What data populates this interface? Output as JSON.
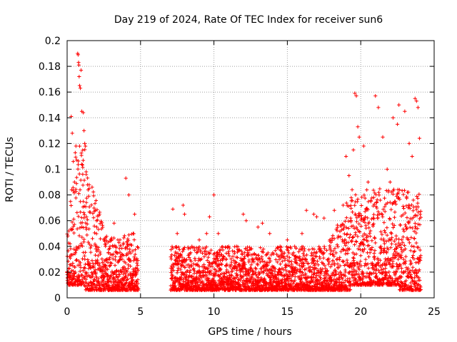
{
  "chart_data": {
    "type": "scatter",
    "title": "Day 219 of 2024, Rate Of TEC Index for receiver sun6",
    "xlabel": "GPS time / hours",
    "ylabel": "ROTI / TECUs",
    "xlim": [
      0,
      25
    ],
    "ylim": [
      0,
      0.2
    ],
    "xticks": [
      0,
      5,
      10,
      15,
      20,
      25
    ],
    "xtick_labels": [
      "0",
      "5",
      "10",
      "15",
      "20",
      "25"
    ],
    "yticks": [
      0,
      0.02,
      0.04,
      0.06,
      0.08,
      0.1,
      0.12,
      0.14,
      0.16,
      0.18,
      0.2
    ],
    "ytick_labels": [
      "0",
      "0.02",
      "0.04",
      "0.06",
      "0.08",
      "0.1",
      "0.12",
      "0.14",
      "0.16",
      "0.18",
      "0.2"
    ],
    "grid": true,
    "marker": "+",
    "color": "#ff0000",
    "series": [
      {
        "name": "ROTI",
        "points": [
          [
            0.12,
            0.052
          ],
          [
            0.28,
            0.141
          ],
          [
            0.35,
            0.128
          ],
          [
            0.42,
            0.106
          ],
          [
            0.5,
            0.09
          ],
          [
            0.6,
            0.118
          ],
          [
            0.72,
            0.19
          ],
          [
            0.75,
            0.189
          ],
          [
            0.78,
            0.183
          ],
          [
            0.8,
            0.181
          ],
          [
            0.82,
            0.172
          ],
          [
            0.85,
            0.165
          ],
          [
            0.9,
            0.163
          ],
          [
            0.95,
            0.177
          ],
          [
            1.0,
            0.145
          ],
          [
            1.1,
            0.144
          ],
          [
            1.15,
            0.13
          ],
          [
            1.2,
            0.12
          ],
          [
            1.3,
            0.098
          ],
          [
            1.5,
            0.085
          ],
          [
            1.7,
            0.086
          ],
          [
            2.0,
            0.06
          ],
          [
            2.2,
            0.065
          ],
          [
            2.5,
            0.045
          ],
          [
            3.2,
            0.058
          ],
          [
            3.6,
            0.045
          ],
          [
            4.0,
            0.093
          ],
          [
            4.2,
            0.08
          ],
          [
            4.5,
            0.05
          ],
          [
            4.6,
            0.065
          ],
          [
            7.2,
            0.069
          ],
          [
            7.5,
            0.05
          ],
          [
            7.9,
            0.072
          ],
          [
            8.0,
            0.065
          ],
          [
            8.5,
            0.04
          ],
          [
            9.0,
            0.045
          ],
          [
            9.5,
            0.05
          ],
          [
            9.7,
            0.063
          ],
          [
            10.0,
            0.08
          ],
          [
            10.3,
            0.05
          ],
          [
            11.0,
            0.04
          ],
          [
            12.0,
            0.065
          ],
          [
            12.2,
            0.06
          ],
          [
            13.0,
            0.055
          ],
          [
            13.3,
            0.058
          ],
          [
            13.8,
            0.05
          ],
          [
            14.0,
            0.035
          ],
          [
            15.0,
            0.045
          ],
          [
            15.5,
            0.04
          ],
          [
            16.0,
            0.05
          ],
          [
            16.3,
            0.068
          ],
          [
            16.8,
            0.065
          ],
          [
            17.0,
            0.063
          ],
          [
            17.5,
            0.062
          ],
          [
            18.2,
            0.068
          ],
          [
            18.8,
            0.072
          ],
          [
            19.0,
            0.11
          ],
          [
            19.2,
            0.095
          ],
          [
            19.5,
            0.115
          ],
          [
            19.6,
            0.159
          ],
          [
            19.7,
            0.157
          ],
          [
            19.8,
            0.133
          ],
          [
            19.9,
            0.125
          ],
          [
            20.2,
            0.118
          ],
          [
            20.5,
            0.09
          ],
          [
            21.0,
            0.157
          ],
          [
            21.2,
            0.148
          ],
          [
            21.5,
            0.125
          ],
          [
            21.8,
            0.1
          ],
          [
            22.0,
            0.09
          ],
          [
            22.2,
            0.14
          ],
          [
            22.5,
            0.135
          ],
          [
            22.6,
            0.15
          ],
          [
            23.0,
            0.145
          ],
          [
            23.3,
            0.12
          ],
          [
            23.5,
            0.11
          ],
          [
            23.7,
            0.155
          ],
          [
            23.8,
            0.153
          ],
          [
            23.9,
            0.148
          ],
          [
            24.0,
            0.124
          ]
        ]
      }
    ]
  }
}
